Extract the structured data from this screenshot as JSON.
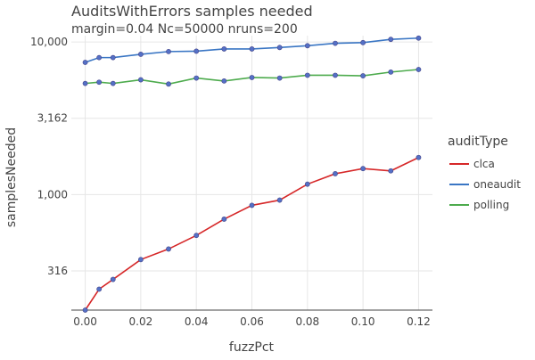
{
  "chart_data": {
    "type": "line",
    "title": "AuditsWithErrors samples needed",
    "subtitle": "margin=0.04 Nc=50000 nruns=200",
    "xlabel": "fuzzPct",
    "ylabel": "samplesNeeded",
    "yscale": "log",
    "xlim": [
      -0.005,
      0.125
    ],
    "ylim": [
      175,
      11000
    ],
    "x_ticks": [
      0,
      0.02,
      0.04,
      0.06,
      0.08,
      0.1,
      0.12
    ],
    "x_tick_labels": [
      "0.00",
      "0.02",
      "0.04",
      "0.06",
      "0.08",
      "0.10",
      "0.12"
    ],
    "y_ticks": [
      316,
      1000,
      3162,
      10000
    ],
    "y_tick_labels": [
      "316",
      "1,000",
      "3,162",
      "10,000"
    ],
    "grid": true,
    "legend_position": "right",
    "legend_title": "auditType",
    "marker_color": "#5470c6",
    "x": [
      0,
      0.005,
      0.01,
      0.02,
      0.03,
      0.04,
      0.05,
      0.06,
      0.07,
      0.08,
      0.09,
      0.1,
      0.11,
      0.12
    ],
    "series": [
      {
        "name": "clca",
        "color": "#d62728",
        "values": [
          175,
          240,
          278,
          375,
          440,
          540,
          690,
          850,
          920,
          1170,
          1370,
          1480,
          1430,
          1750
        ]
      },
      {
        "name": "oneaudit",
        "color": "#3a76c4",
        "values": [
          7350,
          7900,
          7900,
          8300,
          8650,
          8700,
          9000,
          9000,
          9200,
          9450,
          9800,
          9900,
          10400,
          10600
        ]
      },
      {
        "name": "polling",
        "color": "#4dab4d",
        "values": [
          5350,
          5450,
          5350,
          5650,
          5300,
          5800,
          5550,
          5850,
          5800,
          6050,
          6050,
          6000,
          6350,
          6600
        ]
      }
    ]
  }
}
